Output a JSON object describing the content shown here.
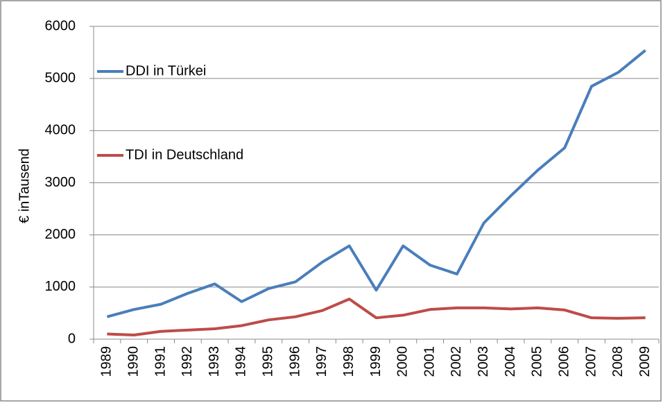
{
  "chart_data": {
    "type": "line",
    "y_label": "€ inTausend",
    "categories": [
      "1989",
      "1990",
      "1991",
      "1992",
      "1993",
      "1994",
      "1995",
      "1996",
      "1997",
      "1998",
      "1999",
      "2000",
      "2001",
      "2002",
      "2003",
      "2004",
      "2005",
      "2006",
      "2007",
      "2008",
      "2009"
    ],
    "series": [
      {
        "name": "DDI in Türkei",
        "color": "#4a7ebb",
        "values": [
          430,
          570,
          670,
          880,
          1060,
          720,
          970,
          1100,
          1480,
          1790,
          940,
          1790,
          1420,
          1250,
          2230,
          2750,
          3240,
          3670,
          4850,
          5120,
          5540
        ]
      },
      {
        "name": "TDI in Deutschland",
        "color": "#be4b48",
        "values": [
          100,
          80,
          150,
          175,
          200,
          260,
          370,
          430,
          550,
          770,
          410,
          460,
          570,
          600,
          600,
          580,
          600,
          560,
          410,
          400,
          410
        ]
      }
    ],
    "ylim": [
      0,
      6000
    ],
    "yticks": [
      0,
      1000,
      2000,
      3000,
      4000,
      5000,
      6000
    ],
    "grid": true
  }
}
